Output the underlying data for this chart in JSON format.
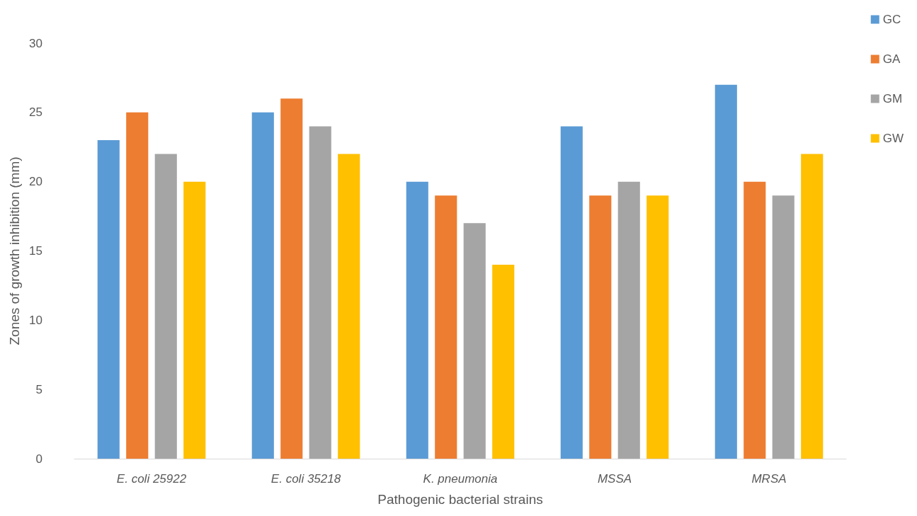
{
  "chart_data": {
    "type": "bar",
    "xlabel": "Pathogenic bacterial strains",
    "ylabel": "Zones of growth inhibition (mm)",
    "categories": [
      "E. coli 25922",
      "E. coli 35218",
      "K. pneumonia",
      "MSSA",
      "MRSA"
    ],
    "series": [
      {
        "name": "GC",
        "color": "#5b9bd5",
        "values": [
          23,
          25,
          20,
          24,
          27
        ]
      },
      {
        "name": "GA",
        "color": "#ed7d31",
        "values": [
          25,
          26,
          19,
          19,
          20
        ]
      },
      {
        "name": "GM",
        "color": "#a5a5a5",
        "values": [
          22,
          24,
          17,
          20,
          19
        ]
      },
      {
        "name": "GW",
        "color": "#ffc000",
        "values": [
          20,
          22,
          14,
          19,
          22
        ]
      }
    ],
    "ylim": [
      0,
      30
    ],
    "yticks": [
      0,
      5,
      10,
      15,
      20,
      25,
      30
    ],
    "grid": false,
    "legend": "top right"
  }
}
